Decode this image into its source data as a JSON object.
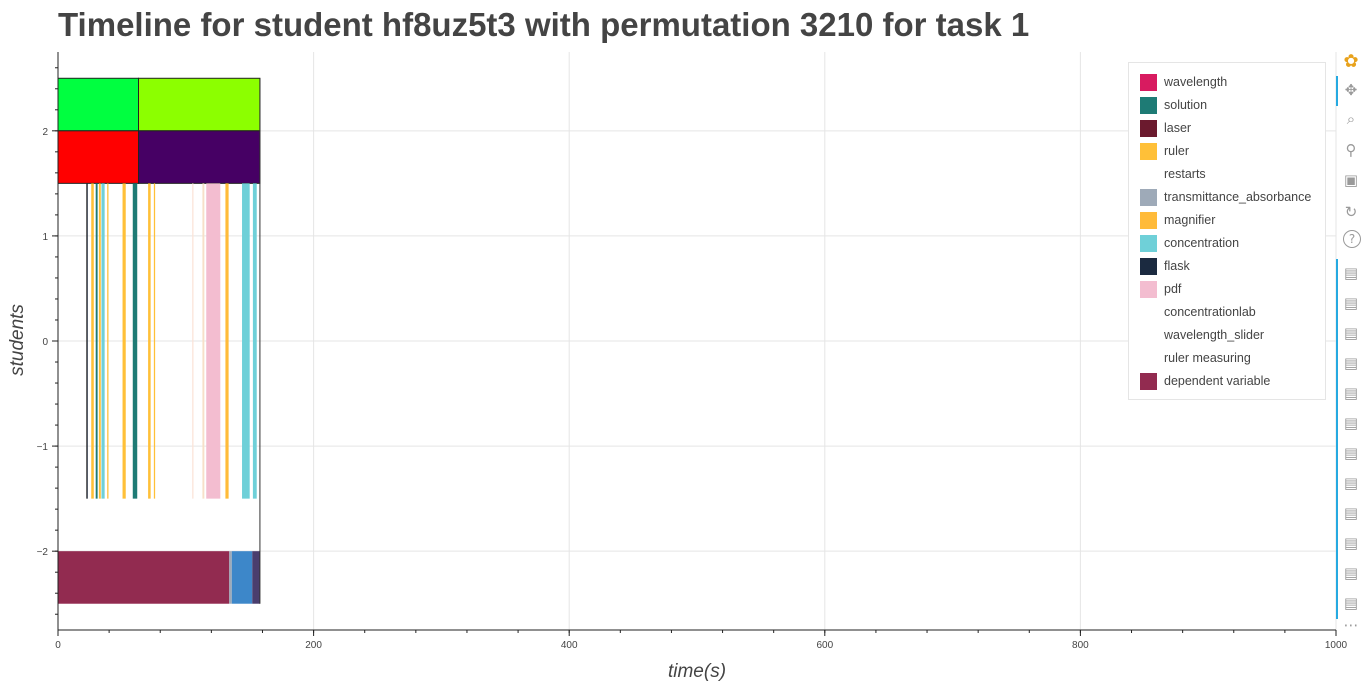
{
  "chart_data": {
    "type": "timeline",
    "title": "Timeline for student hf8uz5t3 with permutation 3210 for task 1",
    "xlabel": "time(s)",
    "ylabel": "students",
    "xlim": [
      0,
      1000
    ],
    "ylim": [
      -2.75,
      2.75
    ],
    "x_ticks": [
      0,
      200,
      400,
      600,
      800,
      1000
    ],
    "y_ticks": [
      -2,
      -1,
      0,
      1,
      2
    ],
    "grid": true,
    "legend_position": "top-right",
    "legend": [
      {
        "label": "wavelength",
        "color": "#d81b60"
      },
      {
        "label": "solution",
        "color": "#1e7b75"
      },
      {
        "label": "laser",
        "color": "#6b1a2e"
      },
      {
        "label": "ruler",
        "color": "#ffc038"
      },
      {
        "label": "restarts",
        "color": "#ffffff"
      },
      {
        "label": "transmittance_absorbance",
        "color": "#9eaab8"
      },
      {
        "label": "magnifier",
        "color": "#ffbb3a"
      },
      {
        "label": "concentration",
        "color": "#6fd0d8"
      },
      {
        "label": "flask",
        "color": "#1b2a40"
      },
      {
        "label": "pdf",
        "color": "#f3bdd0"
      },
      {
        "label": "concentrationlab",
        "color": "#ffffff"
      },
      {
        "label": "wavelength_slider",
        "color": "#ffffff"
      },
      {
        "label": "ruler measuring",
        "color": "#ffffff"
      },
      {
        "label": "dependent variable",
        "color": "#922b50"
      }
    ],
    "bars": [
      {
        "x0": 0,
        "x1": 63,
        "y0": 2,
        "y1": 2.5,
        "color": "#00ff40",
        "edge": true
      },
      {
        "x0": 63,
        "x1": 158,
        "y0": 2,
        "y1": 2.5,
        "color": "#8cff00",
        "edge": true
      },
      {
        "x0": 0,
        "x1": 63,
        "y0": 1.5,
        "y1": 2,
        "color": "#ff0000",
        "edge": true
      },
      {
        "x0": 63,
        "x1": 158,
        "y0": 1.5,
        "y1": 2,
        "color": "#460064",
        "edge": true
      },
      {
        "x0": 0,
        "x1": 134,
        "y0": -2.5,
        "y1": -2,
        "color": "#922b50",
        "edge": false
      },
      {
        "x0": 134,
        "x1": 136,
        "y0": -2.5,
        "y1": -2,
        "color": "#9eaab8",
        "edge": false
      },
      {
        "x0": 136,
        "x1": 152,
        "y0": -2.5,
        "y1": -2,
        "color": "#3d87c9",
        "edge": false
      },
      {
        "x0": 152,
        "x1": 158,
        "y0": -2.5,
        "y1": -2,
        "color": "#4a3e6e",
        "edge": false
      },
      {
        "x0": 22.5,
        "x1": 23.3,
        "y0": -1.5,
        "y1": 1.5,
        "color": "#1b2a40",
        "edge": false
      },
      {
        "x0": 26,
        "x1": 28,
        "y0": -1.5,
        "y1": 1.5,
        "color": "#ffc038",
        "edge": false
      },
      {
        "x0": 29.5,
        "x1": 31,
        "y0": -1.5,
        "y1": 1.5,
        "color": "#1e7b75",
        "edge": false
      },
      {
        "x0": 32,
        "x1": 33.5,
        "y0": -1.5,
        "y1": 1.5,
        "color": "#ffc038",
        "edge": false
      },
      {
        "x0": 34,
        "x1": 36.5,
        "y0": -1.5,
        "y1": 1.5,
        "color": "#6fd0d8",
        "edge": false
      },
      {
        "x0": 38.5,
        "x1": 39.5,
        "y0": -1.5,
        "y1": 1.5,
        "color": "#ffc038",
        "edge": false
      },
      {
        "x0": 50.5,
        "x1": 53,
        "y0": -1.5,
        "y1": 1.5,
        "color": "#ffc038",
        "edge": false
      },
      {
        "x0": 58.5,
        "x1": 62,
        "y0": -1.5,
        "y1": 1.5,
        "color": "#1e7b75",
        "edge": false
      },
      {
        "x0": 70.5,
        "x1": 72.5,
        "y0": -1.5,
        "y1": 1.5,
        "color": "#ffc038",
        "edge": false
      },
      {
        "x0": 75,
        "x1": 76,
        "y0": -1.5,
        "y1": 1.5,
        "color": "#ffc038",
        "edge": false
      },
      {
        "x0": 105,
        "x1": 106,
        "y0": -1.5,
        "y1": 1.5,
        "color": "#fbe4d8",
        "edge": false
      },
      {
        "x0": 113,
        "x1": 114.5,
        "y0": -1.5,
        "y1": 1.5,
        "color": "#f7e0c8",
        "edge": false
      },
      {
        "x0": 116,
        "x1": 127,
        "y0": -1.5,
        "y1": 1.5,
        "color": "#f3bdd0",
        "edge": false
      },
      {
        "x0": 131,
        "x1": 133.5,
        "y0": -1.5,
        "y1": 1.5,
        "color": "#ffbb3a",
        "edge": false
      },
      {
        "x0": 144,
        "x1": 150,
        "y0": -1.5,
        "y1": 1.5,
        "color": "#6fd0d8",
        "edge": false
      },
      {
        "x0": 152.5,
        "x1": 155.5,
        "y0": -1.5,
        "y1": 1.5,
        "color": "#6fd0d8",
        "edge": false
      }
    ],
    "outline_lines": [
      {
        "x0": 22.5,
        "x1": 22.5,
        "y0": -1.5,
        "y1": 1.5
      },
      {
        "x0": 158,
        "x1": 158,
        "y0": -2.5,
        "y1": 2.5
      }
    ]
  },
  "toolbar": {
    "tools": [
      {
        "name": "bokeh-logo-icon",
        "glyph": "✿"
      },
      {
        "name": "pan-icon",
        "glyph": "✥"
      },
      {
        "name": "box-zoom-icon",
        "glyph": "⌕"
      },
      {
        "name": "wheel-zoom-icon",
        "glyph": "⚲"
      },
      {
        "name": "save-icon",
        "glyph": "▣"
      },
      {
        "name": "reset-icon",
        "glyph": "↻"
      },
      {
        "name": "help-icon",
        "glyph": "?"
      },
      {
        "name": "hover-icon",
        "glyph": "▤"
      },
      {
        "name": "hover-icon",
        "glyph": "▤"
      },
      {
        "name": "hover-icon",
        "glyph": "▤"
      },
      {
        "name": "hover-icon",
        "glyph": "▤"
      },
      {
        "name": "hover-icon",
        "glyph": "▤"
      },
      {
        "name": "hover-icon",
        "glyph": "▤"
      },
      {
        "name": "hover-icon",
        "glyph": "▤"
      },
      {
        "name": "hover-icon",
        "glyph": "▤"
      },
      {
        "name": "hover-icon",
        "glyph": "▤"
      },
      {
        "name": "hover-icon",
        "glyph": "▤"
      },
      {
        "name": "hover-icon",
        "glyph": "▤"
      },
      {
        "name": "hover-icon",
        "glyph": "▤"
      },
      {
        "name": "more-icon",
        "glyph": "⋯"
      }
    ]
  }
}
